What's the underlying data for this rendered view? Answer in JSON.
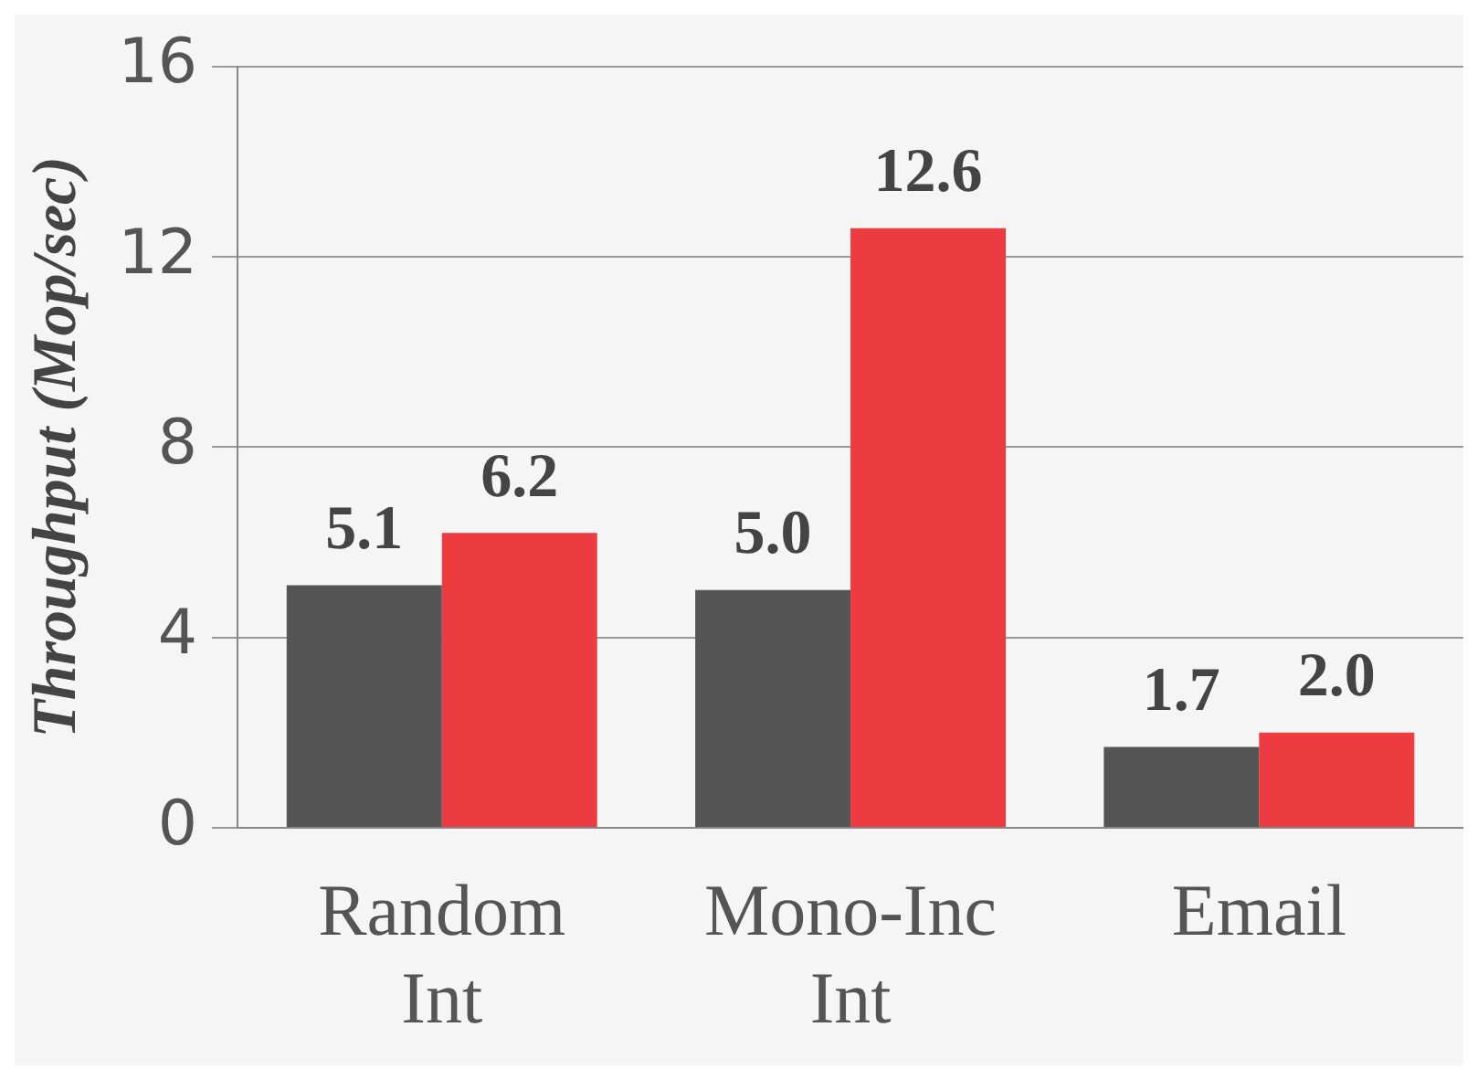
{
  "chart_data": {
    "type": "bar",
    "ylabel": "Throughput (Mop/sec)",
    "categories": [
      "Random Int",
      "Mono-Inc Int",
      "Email"
    ],
    "series": [
      {
        "color": "#555555",
        "values": [
          5.1,
          5.0,
          1.7
        ],
        "value_labels": [
          "5.1",
          "5.0",
          "1.7"
        ]
      },
      {
        "color": "#ec3c41",
        "values": [
          6.2,
          12.6,
          2.0
        ],
        "value_labels": [
          "6.2",
          "12.6",
          "2.0"
        ]
      }
    ],
    "ylim": [
      0,
      16
    ],
    "yticks": [
      0,
      4,
      8,
      12,
      16
    ],
    "grid": "y",
    "legend": false
  }
}
